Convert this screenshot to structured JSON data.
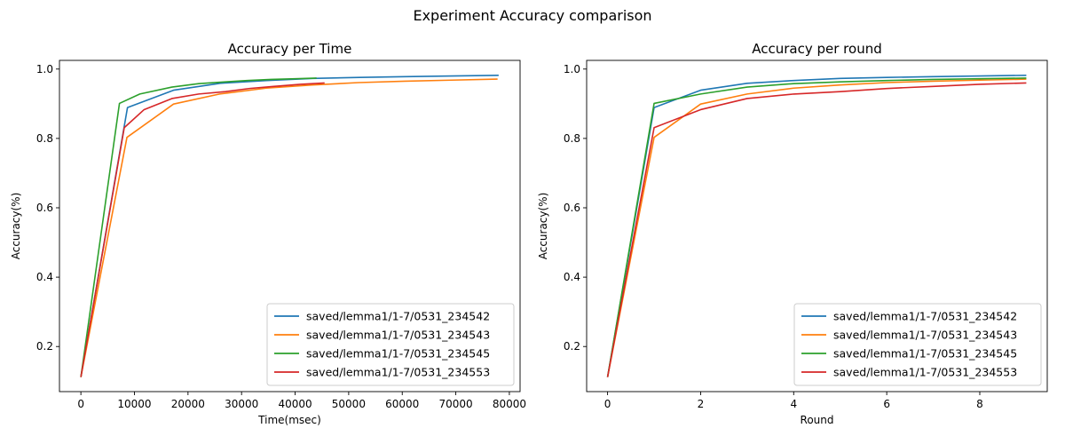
{
  "figure": {
    "suptitle": "Experiment Accuracy comparison"
  },
  "chart_data": [
    {
      "type": "line",
      "title": "Accuracy per Time",
      "xlabel": "Time(msec)",
      "ylabel": "Accuracy(%)",
      "xlim": [
        -4000,
        82000
      ],
      "ylim": [
        0.07,
        1.025
      ],
      "xticks": [
        0,
        10000,
        20000,
        30000,
        40000,
        50000,
        60000,
        70000,
        80000
      ],
      "yticks": [
        0.2,
        0.4,
        0.6,
        0.8,
        1.0
      ],
      "ytick_labels": [
        "0.2",
        "0.4",
        "0.6",
        "0.8",
        "1.0"
      ],
      "grid": false,
      "legend_position": "lower-right",
      "series": [
        {
          "name": "saved/lemma1/1-7/0531_234542",
          "color": "#1f77b4",
          "x": [
            0,
            8700,
            17300,
            26000,
            34700,
            43300,
            52000,
            60700,
            69300,
            78000
          ],
          "y": [
            0.112,
            0.889,
            0.939,
            0.959,
            0.967,
            0.973,
            0.976,
            0.978,
            0.98,
            0.982
          ]
        },
        {
          "name": "saved/lemma1/1-7/0531_234543",
          "color": "#ff7f0e",
          "x": [
            0,
            8600,
            17300,
            25900,
            34600,
            43200,
            51900,
            60500,
            69200,
            77800
          ],
          "y": [
            0.112,
            0.803,
            0.899,
            0.928,
            0.945,
            0.954,
            0.961,
            0.965,
            0.968,
            0.971
          ]
        },
        {
          "name": "saved/lemma1/1-7/0531_234545",
          "color": "#2ca02c",
          "x": [
            0,
            7200,
            11000,
            17000,
            22000,
            27000,
            31000,
            35500,
            40000,
            44000
          ],
          "y": [
            0.112,
            0.901,
            0.928,
            0.948,
            0.958,
            0.963,
            0.967,
            0.97,
            0.972,
            0.974
          ]
        },
        {
          "name": "saved/lemma1/1-7/0531_234553",
          "color": "#d62728",
          "x": [
            0,
            8100,
            11800,
            17000,
            22000,
            27000,
            31500,
            36000,
            41000,
            45500
          ],
          "y": [
            0.112,
            0.831,
            0.883,
            0.915,
            0.928,
            0.935,
            0.944,
            0.95,
            0.956,
            0.96
          ]
        }
      ]
    },
    {
      "type": "line",
      "title": "Accuracy per round",
      "xlabel": "Round",
      "ylabel": "Accuracy(%)",
      "xlim": [
        -0.45,
        9.45
      ],
      "ylim": [
        0.07,
        1.025
      ],
      "xticks": [
        0,
        2,
        4,
        6,
        8
      ],
      "yticks": [
        0.2,
        0.4,
        0.6,
        0.8,
        1.0
      ],
      "ytick_labels": [
        "0.2",
        "0.4",
        "0.6",
        "0.8",
        "1.0"
      ],
      "grid": false,
      "legend_position": "lower-right",
      "series": [
        {
          "name": "saved/lemma1/1-7/0531_234542",
          "color": "#1f77b4",
          "x": [
            0,
            1,
            2,
            3,
            4,
            5,
            6,
            7,
            8,
            9
          ],
          "y": [
            0.112,
            0.889,
            0.939,
            0.959,
            0.967,
            0.973,
            0.976,
            0.978,
            0.98,
            0.982
          ]
        },
        {
          "name": "saved/lemma1/1-7/0531_234543",
          "color": "#ff7f0e",
          "x": [
            0,
            1,
            2,
            3,
            4,
            5,
            6,
            7,
            8,
            9
          ],
          "y": [
            0.112,
            0.803,
            0.899,
            0.928,
            0.945,
            0.954,
            0.961,
            0.965,
            0.968,
            0.971
          ]
        },
        {
          "name": "saved/lemma1/1-7/0531_234545",
          "color": "#2ca02c",
          "x": [
            0,
            1,
            2,
            3,
            4,
            5,
            6,
            7,
            8,
            9
          ],
          "y": [
            0.112,
            0.901,
            0.928,
            0.948,
            0.958,
            0.963,
            0.967,
            0.97,
            0.972,
            0.974
          ]
        },
        {
          "name": "saved/lemma1/1-7/0531_234553",
          "color": "#d62728",
          "x": [
            0,
            1,
            2,
            3,
            4,
            5,
            6,
            7,
            8,
            9
          ],
          "y": [
            0.112,
            0.831,
            0.883,
            0.915,
            0.928,
            0.935,
            0.944,
            0.95,
            0.956,
            0.96
          ]
        }
      ]
    }
  ]
}
